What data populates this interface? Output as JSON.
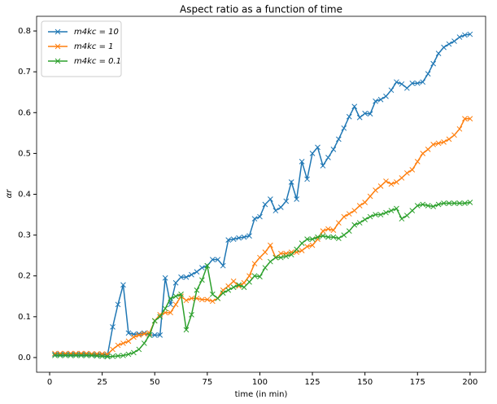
{
  "chart_data": {
    "type": "line",
    "title": "Aspect ratio as a function of time",
    "x_label": "time (in min)",
    "y_label": "αr",
    "x": [
      2.5,
      5,
      7.5,
      10,
      12.5,
      15,
      17.5,
      20,
      22.5,
      25,
      27.5,
      30,
      32.5,
      35,
      37.5,
      40,
      42.5,
      45,
      47.5,
      50,
      52.5,
      55,
      57.5,
      60,
      62.5,
      65,
      67.5,
      70,
      72.5,
      75,
      77.5,
      80,
      82.5,
      85,
      87.5,
      90,
      92.5,
      95,
      97.5,
      100,
      102.5,
      105,
      107.5,
      110,
      112.5,
      115,
      117.5,
      120,
      122.5,
      125,
      127.5,
      130,
      132.5,
      135,
      137.5,
      140,
      142.5,
      145,
      147.5,
      150,
      152.5,
      155,
      157.5,
      160,
      162.5,
      165,
      167.5,
      170,
      172.5,
      175,
      177.5,
      180,
      182.5,
      185,
      187.5,
      190,
      192.5,
      195,
      197.5,
      200
    ],
    "series": [
      {
        "name": "m4kc = 10",
        "color": "#1f77b4",
        "values": [
          0.008,
          0.008,
          0.008,
          0.008,
          0.008,
          0.008,
          0.008,
          0.008,
          0.007,
          0.007,
          0.005,
          0.075,
          0.13,
          0.178,
          0.06,
          0.057,
          0.058,
          0.06,
          0.055,
          0.055,
          0.055,
          0.195,
          0.13,
          0.183,
          0.197,
          0.197,
          0.203,
          0.21,
          0.22,
          0.225,
          0.24,
          0.24,
          0.225,
          0.288,
          0.29,
          0.293,
          0.295,
          0.298,
          0.34,
          0.345,
          0.375,
          0.388,
          0.36,
          0.368,
          0.383,
          0.43,
          0.388,
          0.48,
          0.437,
          0.5,
          0.515,
          0.47,
          0.49,
          0.51,
          0.535,
          0.562,
          0.59,
          0.615,
          0.588,
          0.598,
          0.597,
          0.628,
          0.632,
          0.64,
          0.655,
          0.675,
          0.67,
          0.66,
          0.672,
          0.672,
          0.675,
          0.695,
          0.72,
          0.745,
          0.76,
          0.768,
          0.775,
          0.785,
          0.79,
          0.792
        ]
      },
      {
        "name": "m4kc = 1",
        "color": "#ff7f0e",
        "values": [
          0.01,
          0.01,
          0.01,
          0.01,
          0.01,
          0.01,
          0.01,
          0.009,
          0.009,
          0.009,
          0.008,
          0.02,
          0.03,
          0.035,
          0.04,
          0.05,
          0.055,
          0.058,
          0.06,
          0.09,
          0.105,
          0.11,
          0.11,
          0.13,
          0.15,
          0.14,
          0.145,
          0.145,
          0.142,
          0.142,
          0.138,
          0.145,
          0.165,
          0.175,
          0.187,
          0.175,
          0.183,
          0.2,
          0.23,
          0.245,
          0.258,
          0.275,
          0.245,
          0.255,
          0.255,
          0.258,
          0.258,
          0.262,
          0.272,
          0.275,
          0.29,
          0.31,
          0.315,
          0.312,
          0.33,
          0.345,
          0.352,
          0.36,
          0.372,
          0.38,
          0.395,
          0.41,
          0.42,
          0.432,
          0.425,
          0.43,
          0.44,
          0.452,
          0.46,
          0.48,
          0.5,
          0.51,
          0.522,
          0.525,
          0.528,
          0.535,
          0.545,
          0.56,
          0.585,
          0.585
        ]
      },
      {
        "name": "m4kc = 0.1",
        "color": "#2ca02c",
        "values": [
          0.005,
          0.005,
          0.005,
          0.005,
          0.005,
          0.005,
          0.005,
          0.005,
          0.004,
          0.003,
          0.002,
          0.003,
          0.004,
          0.005,
          0.008,
          0.012,
          0.02,
          0.035,
          0.055,
          0.09,
          0.1,
          0.12,
          0.145,
          0.15,
          0.155,
          0.068,
          0.105,
          0.165,
          0.19,
          0.225,
          0.155,
          0.145,
          0.158,
          0.165,
          0.172,
          0.178,
          0.172,
          0.185,
          0.2,
          0.198,
          0.22,
          0.235,
          0.245,
          0.245,
          0.248,
          0.252,
          0.265,
          0.28,
          0.29,
          0.29,
          0.295,
          0.298,
          0.295,
          0.295,
          0.292,
          0.3,
          0.31,
          0.325,
          0.33,
          0.338,
          0.345,
          0.35,
          0.35,
          0.355,
          0.36,
          0.365,
          0.34,
          0.348,
          0.36,
          0.372,
          0.375,
          0.372,
          0.37,
          0.375,
          0.378,
          0.378,
          0.378,
          0.378,
          0.378,
          0.38
        ]
      }
    ],
    "xlim": [
      -6.2,
      207.4
    ],
    "ylim": [
      -0.036,
      0.836
    ],
    "xticks": [
      0,
      25,
      50,
      75,
      100,
      125,
      150,
      175,
      200
    ],
    "yticks": [
      0.0,
      0.1,
      0.2,
      0.3,
      0.4,
      0.5,
      0.6,
      0.7,
      0.8
    ],
    "legend": "upper left",
    "grid": false
  }
}
